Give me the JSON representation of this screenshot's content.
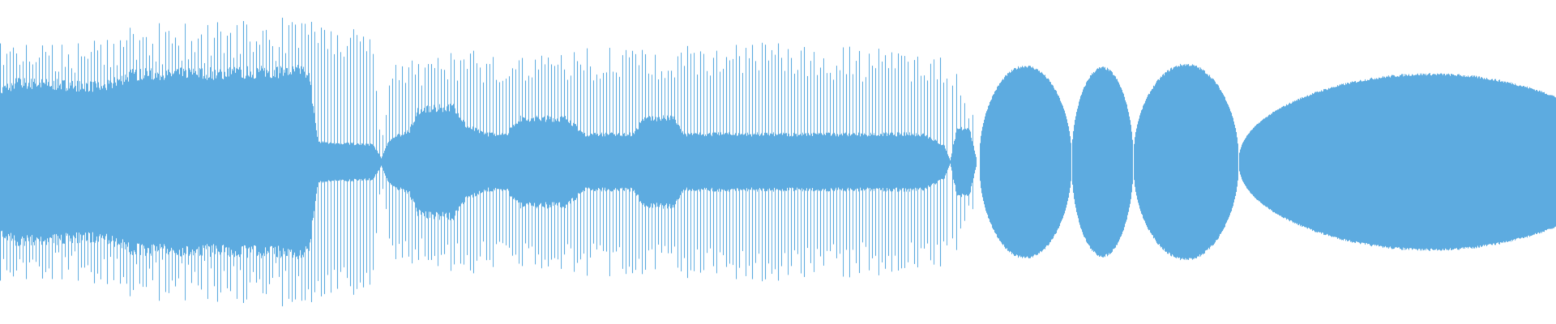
{
  "waveform": {
    "color": "#5dabe0",
    "background": "#ffffff"
  }
}
